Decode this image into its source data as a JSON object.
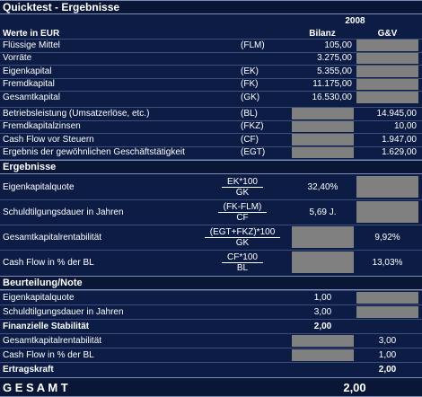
{
  "title": "Quicktest - Ergebnisse",
  "year": "2008",
  "header": {
    "label": "Werte in EUR",
    "bilanz": "Bilanz",
    "guv": "G&V"
  },
  "bilanz_rows": [
    {
      "label": "Flüssige Mittel",
      "abbr": "(FLM)",
      "value": "105,00"
    },
    {
      "label": "Vorräte",
      "abbr": "",
      "value": "3.275,00"
    },
    {
      "label": "Eigenkapital",
      "abbr": "(EK)",
      "value": "5.355,00"
    },
    {
      "label": "Fremdkapital",
      "abbr": "(FK)",
      "value": "11.175,00"
    },
    {
      "label": "Gesamtkapital",
      "abbr": "(GK)",
      "value": "16.530,00"
    }
  ],
  "guv_rows": [
    {
      "label": "Betriebsleistung (Umsatzerlöse, etc.)",
      "abbr": "(BL)",
      "value": "14.945,00"
    },
    {
      "label": "Fremdkapitalzinsen",
      "abbr": "(FKZ)",
      "value": "10,00"
    },
    {
      "label": "Cash Flow vor Steuern",
      "abbr": "(CF)",
      "value": "1.947,00"
    },
    {
      "label": "Ergebnis der gewöhnlichen Geschäftstätigkeit",
      "abbr": "(EGT)",
      "value": "1.629,00"
    }
  ],
  "ergebnisse": {
    "title": "Ergebnisse",
    "rows": [
      {
        "label": "Eigenkapitalquote",
        "numerator": "EK*100",
        "denominator": "GK",
        "value": "32,40%"
      },
      {
        "label": "Schuldtilgungsdauer in Jahren",
        "numerator": "(FK-FLM)",
        "denominator": "CF",
        "value": "5,69 J."
      },
      {
        "label": "Gesamtkapitalrentabilität",
        "numerator": "(EGT+FKZ)*100",
        "denominator": "GK",
        "value": "9,92%"
      },
      {
        "label": "Cash Flow in % der BL",
        "numerator": "CF*100",
        "denominator": "BL",
        "value": "13,03%"
      }
    ]
  },
  "beurteilung": {
    "title": "Beurteilung/Note",
    "rows": [
      {
        "label": "Eigenkapitalquote",
        "value": "1,00"
      },
      {
        "label": "Schuldtilgungsdauer in Jahren",
        "value": "3,00"
      },
      {
        "label": "Finanzielle Stabilität",
        "value": "2,00"
      },
      {
        "label": "Gesamtkapitalrentabilität",
        "value": "3,00"
      },
      {
        "label": "Cash Flow in % der BL",
        "value": "1,00"
      },
      {
        "label": "Ertragskraft",
        "value": "2,00"
      }
    ]
  },
  "gesamt": {
    "label": "G E S A M T",
    "value": "2,00"
  }
}
